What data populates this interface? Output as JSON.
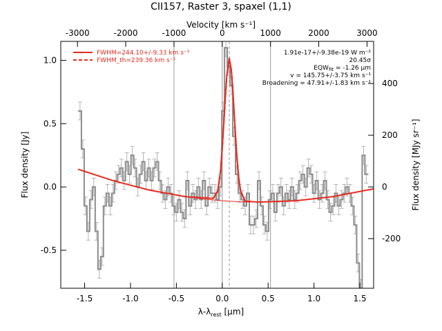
{
  "chart_data": {
    "type": "step",
    "title": "CII157, Raster 3, spaxel (1,1)",
    "xlabel": {
      "main": "λ-λ",
      "sub": "rest",
      "unit": " [μm]"
    },
    "ylabel": "Flux density [Jy]",
    "x2label": "Velocity [km s⁻¹]",
    "y2label": "Flux density [MJy sr⁻¹]",
    "xlim": [
      -1.76,
      1.65
    ],
    "ylim": [
      -0.8,
      1.15
    ],
    "x2lim": [
      -3346,
      3137
    ],
    "y2lim": [
      -392,
      563
    ],
    "xticks": [
      -1.5,
      {
        "value": -1,
        "label": "-1.0"
      },
      -0.5,
      {
        "value": 0,
        "label": "0.0"
      },
      0.5,
      {
        "value": 1,
        "label": "1.0"
      },
      1.5
    ],
    "yticks": [
      -0.5,
      {
        "value": 0,
        "label": "0.0"
      },
      0.5,
      {
        "value": 1,
        "label": "1.0"
      }
    ],
    "x2ticks": [
      -3000,
      -2000,
      -1000,
      0,
      1000,
      2000,
      3000
    ],
    "y2ticks": [
      -200,
      0,
      200,
      400
    ],
    "vlines_velocity": [
      -1000,
      0,
      1000
    ],
    "center_line_velocity": 145.75,
    "data": {
      "color": "#8c8c8c",
      "error_color": "#b4b4b4",
      "x": [
        -1.55,
        -1.52,
        -1.49,
        -1.46,
        -1.43,
        -1.4,
        -1.37,
        -1.34,
        -1.31,
        -1.28,
        -1.25,
        -1.22,
        -1.19,
        -1.16,
        -1.13,
        -1.1,
        -1.07,
        -1.04,
        -1.01,
        -0.98,
        -0.95,
        -0.92,
        -0.89,
        -0.86,
        -0.83,
        -0.8,
        -0.77,
        -0.74,
        -0.71,
        -0.68,
        -0.65,
        -0.62,
        -0.59,
        -0.56,
        -0.53,
        -0.5,
        -0.47,
        -0.44,
        -0.41,
        -0.38,
        -0.35,
        -0.32,
        -0.29,
        -0.26,
        -0.23,
        -0.2,
        -0.17,
        -0.14,
        -0.11,
        -0.08,
        -0.05,
        -0.02,
        0.01,
        0.04,
        0.07,
        0.1,
        0.13,
        0.16,
        0.19,
        0.22,
        0.25,
        0.28,
        0.31,
        0.34,
        0.37,
        0.4,
        0.43,
        0.46,
        0.49,
        0.52,
        0.55,
        0.58,
        0.61,
        0.64,
        0.67,
        0.7,
        0.73,
        0.76,
        0.79,
        0.82,
        0.85,
        0.88,
        0.91,
        0.94,
        0.97,
        1.0,
        1.03,
        1.06,
        1.09,
        1.12,
        1.15,
        1.18,
        1.21,
        1.24,
        1.27,
        1.3,
        1.33,
        1.36,
        1.39,
        1.42,
        1.45,
        1.48,
        1.51,
        1.54,
        1.57
      ],
      "values": [
        0.6,
        0.3,
        -0.15,
        -0.35,
        -0.1,
        0.0,
        -0.35,
        -0.65,
        -0.55,
        -0.15,
        -0.05,
        -0.15,
        -0.05,
        0.05,
        0.1,
        0.15,
        0.05,
        0.2,
        0.1,
        0.25,
        0.15,
        0.0,
        0.1,
        0.2,
        0.05,
        0.15,
        0.05,
        0.15,
        0.2,
        0.05,
        -0.05,
        -0.1,
        0.0,
        -0.05,
        -0.15,
        -0.2,
        -0.1,
        -0.2,
        -0.25,
        0.05,
        -0.15,
        -0.05,
        -0.1,
        0.0,
        -0.1,
        0.05,
        -0.15,
        0.0,
        -0.05,
        -0.05,
        -0.1,
        0.0,
        0.6,
        1.1,
        0.95,
        0.8,
        0.4,
        0.1,
        -0.05,
        -0.1,
        -0.15,
        -0.05,
        -0.3,
        -0.3,
        -0.25,
        0.05,
        -0.15,
        -0.3,
        -0.35,
        -0.1,
        -0.05,
        -0.2,
        -0.05,
        0.0,
        -0.15,
        -0.05,
        -0.1,
        0.0,
        -0.1,
        -0.05,
        0.05,
        0.1,
        0.0,
        0.15,
        0.1,
        -0.05,
        0.05,
        -0.1,
        -0.05,
        0.05,
        -0.1,
        -0.2,
        -0.15,
        -0.05,
        -0.15,
        -0.1,
        -0.05,
        0.0,
        -0.05,
        -0.15,
        -0.3,
        -0.6,
        -0.8,
        0.25,
        0.1
      ],
      "errors": [
        0.07,
        0.07,
        0.07,
        0.07,
        0.07,
        0.07,
        0.07,
        0.07,
        0.07,
        0.07,
        0.07,
        0.07,
        0.07,
        0.07,
        0.07,
        0.07,
        0.07,
        0.07,
        0.07,
        0.07,
        0.07,
        0.07,
        0.07,
        0.07,
        0.07,
        0.07,
        0.07,
        0.07,
        0.07,
        0.07,
        0.07,
        0.07,
        0.07,
        0.07,
        0.07,
        0.07,
        0.07,
        0.07,
        0.07,
        0.07,
        0.07,
        0.07,
        0.07,
        0.07,
        0.07,
        0.07,
        0.07,
        0.07,
        0.07,
        0.07,
        0.07,
        0.07,
        0.07,
        0.07,
        0.07,
        0.07,
        0.07,
        0.07,
        0.07,
        0.07,
        0.07,
        0.07,
        0.07,
        0.07,
        0.07,
        0.07,
        0.07,
        0.07,
        0.07,
        0.07,
        0.07,
        0.07,
        0.07,
        0.07,
        0.07,
        0.07,
        0.07,
        0.07,
        0.07,
        0.07,
        0.07,
        0.07,
        0.07,
        0.07,
        0.07,
        0.07,
        0.07,
        0.07,
        0.07,
        0.07,
        0.07,
        0.07,
        0.07,
        0.07,
        0.07,
        0.07,
        0.07,
        0.07,
        0.07,
        0.07,
        0.07,
        0.07,
        0.07,
        0.07,
        0.07
      ]
    },
    "series": [
      {
        "name": "FWHM=244.10+/-9.33 km s⁻¹",
        "color": "#e8281e",
        "dash": false,
        "x": [
          -1.57,
          -1.2,
          -0.8,
          -0.4,
          -0.1,
          -0.05,
          -0.02,
          0,
          0.03,
          0.05,
          0.077,
          0.1,
          0.12,
          0.14,
          0.16,
          0.18,
          0.2,
          0.25,
          0.4,
          0.8,
          1.2,
          1.65
        ],
        "values": [
          0.14,
          0.052,
          -0.024,
          -0.077,
          -0.09,
          -0.032,
          0.12,
          0.307,
          0.667,
          0.887,
          1.017,
          0.92,
          0.712,
          0.463,
          0.237,
          0.072,
          -0.031,
          -0.112,
          -0.12,
          -0.109,
          -0.077,
          -0.015
        ]
      },
      {
        "name": "FWHM_th=239.36 km s⁻¹",
        "color": "#e8281e",
        "dash": true,
        "x": [
          -0.1,
          -0.05,
          -0.02,
          0,
          0.03,
          0.05,
          0.077,
          0.1,
          0.12,
          0.14,
          0.16,
          0.18,
          0.2,
          0.25
        ],
        "values": [
          -0.092,
          -0.04,
          0.11,
          0.3,
          0.66,
          0.88,
          1.01,
          0.91,
          0.7,
          0.45,
          0.225,
          0.062,
          -0.038,
          -0.113
        ]
      },
      {
        "color": "#e8281e",
        "dash": false,
        "x": [
          -0.4,
          -0.2,
          0,
          0.2,
          0.4
        ],
        "values": [
          -0.077,
          -0.096,
          -0.109,
          -0.118,
          -0.12
        ]
      }
    ],
    "annotations": [
      "1.91e-17+/-9.38e-19 W m⁻²",
      "20.45σ"
    ],
    "eqw": {
      "label": "EQW",
      "sub": "fit",
      "text": " = -1.26 μm"
    },
    "annotations2": [
      "v = 145.75+/-3.75 km s⁻¹",
      "Broadening = 47.91+/-1.83 km s⁻¹"
    ]
  }
}
